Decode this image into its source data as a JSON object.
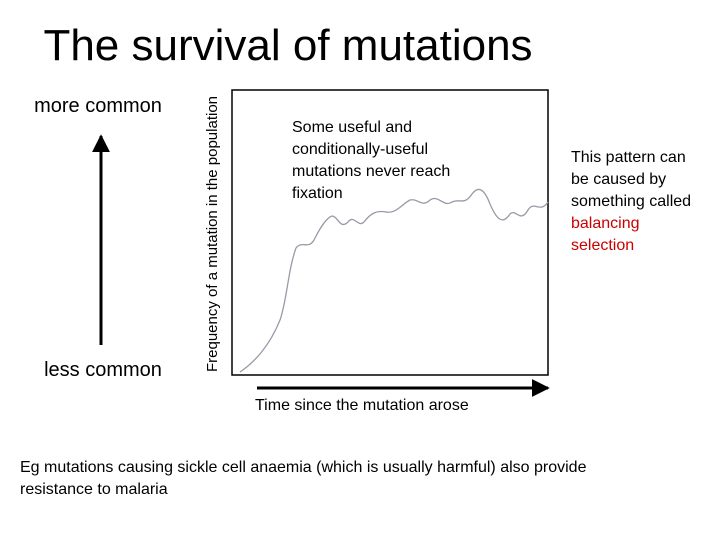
{
  "title": "The survival of mutations",
  "y_axis": {
    "top_label": "more common",
    "bottom_label": "less common",
    "label": "Frequency of a mutation in the population"
  },
  "x_axis": {
    "label": "Time since the mutation arose"
  },
  "box_note": {
    "lines": [
      "Some useful and",
      "conditionally-useful",
      "mutations never reach",
      "fixation"
    ]
  },
  "side_note": {
    "lines": [
      "This pattern can",
      "be caused by",
      "something called"
    ],
    "highlight_lines": [
      "balancing",
      "selection"
    ]
  },
  "footer": {
    "lines": [
      "Eg mutations causing sickle cell anaemia (which is usually harmful) also provide",
      "resistance to malaria"
    ]
  }
}
